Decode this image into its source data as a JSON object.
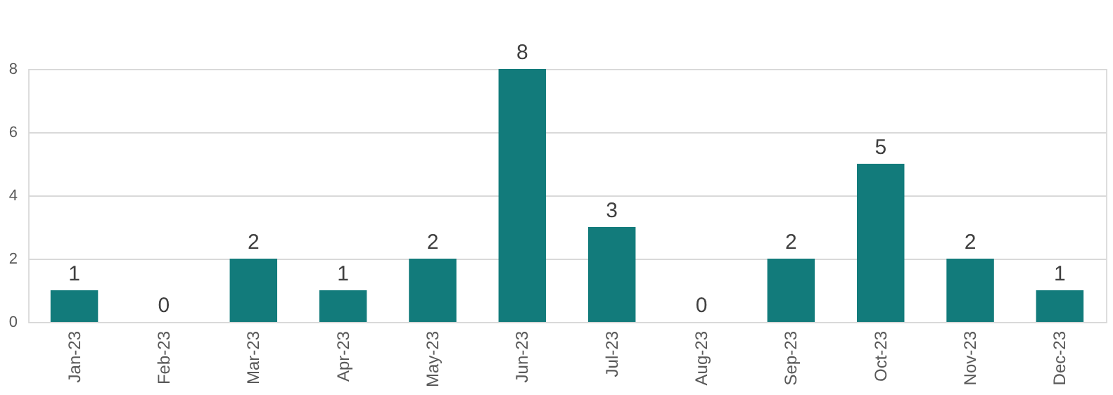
{
  "chart_data": {
    "type": "bar",
    "categories": [
      "Jan-23",
      "Feb-23",
      "Mar-23",
      "Apr-23",
      "May-23",
      "Jun-23",
      "Jul-23",
      "Aug-23",
      "Sep-23",
      "Oct-23",
      "Nov-23",
      "Dec-23"
    ],
    "values": [
      1,
      0,
      2,
      1,
      2,
      8,
      3,
      0,
      2,
      5,
      2,
      1
    ],
    "color": "#127b7b",
    "ylim": [
      0,
      8
    ],
    "yticks": [
      0,
      2,
      4,
      6,
      8
    ],
    "grid": "y",
    "data_labels": true
  }
}
